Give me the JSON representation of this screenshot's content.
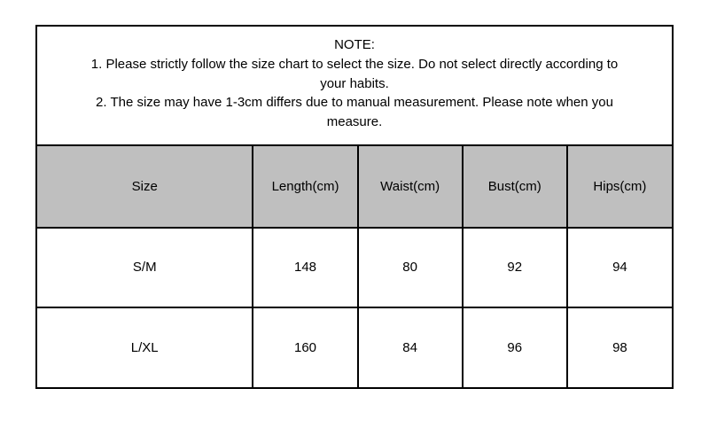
{
  "note": {
    "title": "NOTE:",
    "line1a": "1. Please strictly follow the size chart to select the size. Do not select directly according to",
    "line1b": "your habits.",
    "line2a": "2. The size may have 1-3cm differs due to manual measurement. Please note when you",
    "line2b": "measure."
  },
  "table": {
    "type": "table",
    "background_color": "#ffffff",
    "header_bg_color": "#bfbfbf",
    "border_color": "#000000",
    "text_color": "#000000",
    "font_size": 15,
    "columns": [
      "Size",
      "Length(cm)",
      "Waist(cm)",
      "Bust(cm)",
      "Hips(cm)"
    ],
    "column_widths_pct": [
      34,
      16.5,
      16.5,
      16.5,
      16.5
    ],
    "rows": [
      [
        "S/M",
        "148",
        "80",
        "92",
        "94"
      ],
      [
        "L/XL",
        "160",
        "84",
        "96",
        "98"
      ]
    ]
  }
}
